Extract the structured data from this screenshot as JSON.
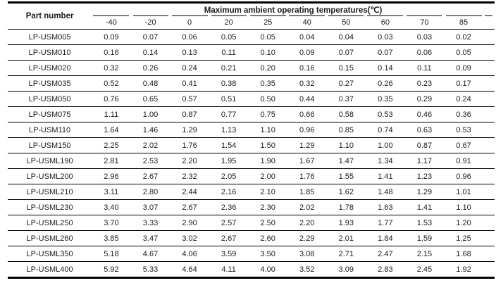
{
  "table": {
    "part_header": "Part number",
    "span_header": "Maximum ambient operating temperatures(℃)",
    "temp_headers": [
      "-40",
      "-20",
      "0",
      "20",
      "25",
      "40",
      "50",
      "60",
      "70",
      "85"
    ],
    "rows": [
      {
        "part": "LP-USM005",
        "values": [
          "0.09",
          "0.07",
          "0.06",
          "0.05",
          "0.05",
          "0.04",
          "0.04",
          "0.03",
          "0.03",
          "0.02"
        ]
      },
      {
        "part": "LP-USM010",
        "values": [
          "0.16",
          "0.14",
          "0.13",
          "0.11",
          "0.10",
          "0.09",
          "0.07",
          "0.07",
          "0.06",
          "0.05"
        ]
      },
      {
        "part": "LP-USM020",
        "values": [
          "0.32",
          "0.26",
          "0.24",
          "0.21",
          "0.20",
          "0.16",
          "0.15",
          "0.14",
          "0.11",
          "0.09"
        ]
      },
      {
        "part": "LP-USM035",
        "values": [
          "0.52",
          "0.48",
          "0.41",
          "0.38",
          "0.35",
          "0.32",
          "0.27",
          "0.26",
          "0.23",
          "0.17"
        ]
      },
      {
        "part": "LP-USM050",
        "values": [
          "0.76",
          "0.65",
          "0.57",
          "0.51",
          "0.50",
          "0.44",
          "0.37",
          "0.35",
          "0.29",
          "0.24"
        ]
      },
      {
        "part": "LP-USM075",
        "values": [
          "1.11",
          "1.00",
          "0.87",
          "0.77",
          "0.75",
          "0.66",
          "0.58",
          "0.53",
          "0.46",
          "0.36"
        ]
      },
      {
        "part": "LP-USM110",
        "values": [
          "1.64",
          "1.46",
          "1.29",
          "1.13",
          "1.10",
          "0.96",
          "0.85",
          "0.74",
          "0.63",
          "0.53"
        ]
      },
      {
        "part": "LP-USM150",
        "values": [
          "2.25",
          "2.02",
          "1.76",
          "1.54",
          "1.50",
          "1.29",
          "1.10",
          "1.00",
          "0.87",
          "0.67"
        ]
      },
      {
        "part": "LP-USML190",
        "values": [
          "2.81",
          "2.53",
          "2.20",
          "1.95",
          "1.90",
          "1.67",
          "1.47",
          "1.34",
          "1.17",
          "0.91"
        ]
      },
      {
        "part": "LP-USML200",
        "values": [
          "2.96",
          "2.67",
          "2.32",
          "2.05",
          "2.00",
          "1.76",
          "1.55",
          "1.41",
          "1.23",
          "0.96"
        ]
      },
      {
        "part": "LP-USML210",
        "values": [
          "3.11",
          "2.80",
          "2.44",
          "2.16",
          "2.10",
          "1.85",
          "1.62",
          "1.48",
          "1.29",
          "1.01"
        ]
      },
      {
        "part": "LP-USML230",
        "values": [
          "3.40",
          "3.07",
          "2.67",
          "2.36",
          "2.30",
          "2.02",
          "1.78",
          "1.63",
          "1.41",
          "1.10"
        ]
      },
      {
        "part": "LP-USML250",
        "values": [
          "3.70",
          "3.33",
          "2.90",
          "2.57",
          "2.50",
          "2.20",
          "1.93",
          "1.77",
          "1.53",
          "1.20"
        ]
      },
      {
        "part": "LP-USML260",
        "values": [
          "3.85",
          "3.47",
          "3.02",
          "2.67",
          "2.60",
          "2.29",
          "2.01",
          "1.84",
          "1.59",
          "1.25"
        ]
      },
      {
        "part": "LP-USML350",
        "values": [
          "5.18",
          "4.67",
          "4.06",
          "3.59",
          "3.50",
          "3.08",
          "2.71",
          "2.47",
          "2.15",
          "1.68"
        ]
      },
      {
        "part": "LP-USML400",
        "values": [
          "5.92",
          "5.33",
          "4.64",
          "4.11",
          "4.00",
          "3.52",
          "3.09",
          "2.83",
          "2.45",
          "1.92"
        ]
      }
    ]
  },
  "colors": {
    "line": "#000000",
    "text": "#1b1b1b",
    "background": "#ffffff"
  }
}
